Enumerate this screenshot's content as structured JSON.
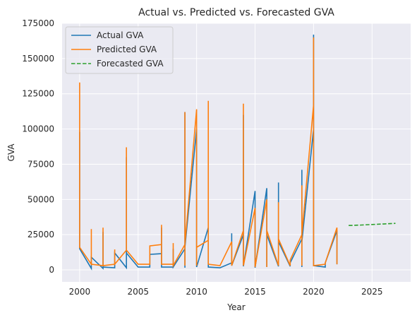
{
  "chart_data": {
    "type": "line",
    "title": "Actual vs. Predicted vs. Forecasted GVA",
    "xlabel": "Year",
    "ylabel": "GVA",
    "xlim": [
      1998.5,
      2028.3
    ],
    "ylim": [
      -8500,
      175000
    ],
    "xticks": [
      2000,
      2005,
      2010,
      2015,
      2020,
      2025
    ],
    "yticks": [
      0,
      25000,
      50000,
      75000,
      100000,
      125000,
      150000,
      175000
    ],
    "grid": true,
    "legend_position": "top-left",
    "background": "#eaeaf2",
    "series": [
      {
        "name": "Actual GVA",
        "color": "#1f77b4",
        "dash": "solid",
        "points": [
          [
            2000,
            98000
          ],
          [
            2000,
            15000
          ],
          [
            2001,
            1000
          ],
          [
            2001,
            9000
          ],
          [
            2002,
            1000
          ],
          [
            2002,
            27000
          ],
          [
            2002,
            2000
          ],
          [
            2003,
            1500
          ],
          [
            2003,
            12000
          ],
          [
            2004,
            1500
          ],
          [
            2004,
            80000
          ],
          [
            2004,
            12000
          ],
          [
            2005,
            2000
          ],
          [
            2006,
            2000
          ],
          [
            2006,
            11000
          ],
          [
            2007,
            11500
          ],
          [
            2007,
            30000
          ],
          [
            2007,
            2000
          ],
          [
            2008,
            2000
          ],
          [
            2008,
            15000
          ],
          [
            2008,
            2000
          ],
          [
            2009,
            15000
          ],
          [
            2009,
            112000
          ],
          [
            2009,
            1500
          ],
          [
            2009,
            16000
          ],
          [
            2010,
            100000
          ],
          [
            2010,
            2000
          ],
          [
            2011,
            30000
          ],
          [
            2011,
            2000
          ],
          [
            2012,
            1500
          ],
          [
            2013,
            5000
          ],
          [
            2013,
            26000
          ],
          [
            2013,
            3000
          ],
          [
            2014,
            25000
          ],
          [
            2014,
            110000
          ],
          [
            2014,
            2500
          ],
          [
            2015,
            56000
          ],
          [
            2015,
            1500
          ],
          [
            2016,
            58000
          ],
          [
            2016,
            2000
          ],
          [
            2016,
            25000
          ],
          [
            2017,
            2500
          ],
          [
            2017,
            62000
          ],
          [
            2017,
            2500
          ],
          [
            2017,
            20000
          ],
          [
            2018,
            2500
          ],
          [
            2018,
            5000
          ],
          [
            2019,
            22000
          ],
          [
            2019,
            71000
          ],
          [
            2019,
            2000
          ],
          [
            2019,
            20000
          ],
          [
            2020,
            100000
          ],
          [
            2020,
            167000
          ],
          [
            2020,
            3000
          ],
          [
            2021,
            2000
          ],
          [
            2021,
            5000
          ],
          [
            2022,
            28000
          ],
          [
            2022,
            4000
          ]
        ]
      },
      {
        "name": "Predicted GVA",
        "color": "#ff7f0e",
        "dash": "solid",
        "points": [
          [
            2000,
            133000
          ],
          [
            2000,
            16000
          ],
          [
            2001,
            4000
          ],
          [
            2001,
            29000
          ],
          [
            2001,
            4000
          ],
          [
            2002,
            3000
          ],
          [
            2002,
            30000
          ],
          [
            2002,
            3000
          ],
          [
            2003,
            4000
          ],
          [
            2003,
            14500
          ],
          [
            2003,
            4000
          ],
          [
            2004,
            14000
          ],
          [
            2004,
            87000
          ],
          [
            2004,
            14000
          ],
          [
            2005,
            4000
          ],
          [
            2006,
            4000
          ],
          [
            2006,
            17000
          ],
          [
            2007,
            18000
          ],
          [
            2007,
            32000
          ],
          [
            2007,
            4000
          ],
          [
            2008,
            4000
          ],
          [
            2008,
            19000
          ],
          [
            2008,
            3000
          ],
          [
            2009,
            18000
          ],
          [
            2009,
            112000
          ],
          [
            2009,
            3000
          ],
          [
            2009,
            18000
          ],
          [
            2010,
            114000
          ],
          [
            2010,
            3000
          ],
          [
            2010,
            16000
          ],
          [
            2011,
            21000
          ],
          [
            2011,
            120000
          ],
          [
            2011,
            4000
          ],
          [
            2012,
            3000
          ],
          [
            2013,
            20000
          ],
          [
            2013,
            3000
          ],
          [
            2014,
            28000
          ],
          [
            2014,
            118000
          ],
          [
            2014,
            3000
          ],
          [
            2015,
            44000
          ],
          [
            2015,
            2000
          ],
          [
            2016,
            50000
          ],
          [
            2016,
            2000
          ],
          [
            2016,
            28000
          ],
          [
            2017,
            3000
          ],
          [
            2017,
            48000
          ],
          [
            2017,
            3000
          ],
          [
            2017,
            22000
          ],
          [
            2018,
            3000
          ],
          [
            2018,
            7000
          ],
          [
            2019,
            25000
          ],
          [
            2019,
            60000
          ],
          [
            2019,
            3000
          ],
          [
            2019,
            25000
          ],
          [
            2020,
            117000
          ],
          [
            2020,
            165000
          ],
          [
            2020,
            3000
          ],
          [
            2021,
            4000
          ],
          [
            2021,
            5000
          ],
          [
            2022,
            30000
          ],
          [
            2022,
            4000
          ]
        ]
      },
      {
        "name": "Forecasted GVA",
        "color": "#2ca02c",
        "dash": "dashed",
        "points": [
          [
            2023,
            31500
          ],
          [
            2024,
            31800
          ],
          [
            2025,
            32200
          ],
          [
            2026,
            32600
          ],
          [
            2027,
            33000
          ]
        ]
      }
    ]
  }
}
